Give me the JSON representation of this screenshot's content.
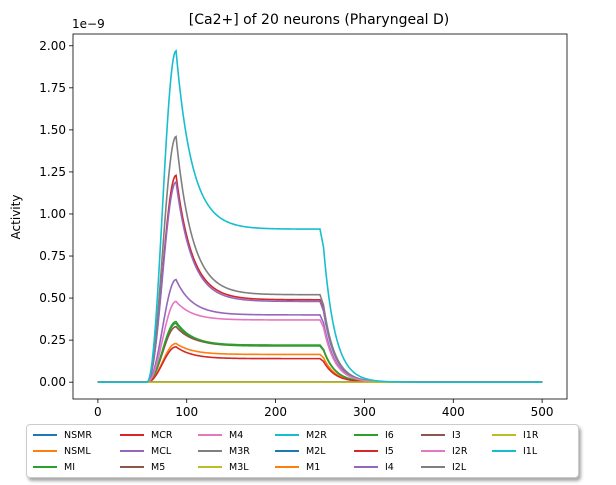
{
  "chart_data": {
    "type": "line",
    "title": "[Ca2+] of 20 neurons (Pharyngeal D)",
    "xlabel": "",
    "ylabel": "Activity",
    "offset_text": "1e−9",
    "xlim": [
      -28,
      528
    ],
    "ylim": [
      -0.1,
      2.07
    ],
    "xticks": [
      0,
      100,
      200,
      300,
      400,
      500
    ],
    "yticks": [
      0.0,
      0.25,
      0.5,
      0.75,
      1.0,
      1.25,
      1.5,
      1.75,
      2.0
    ],
    "ytick_labels": [
      "0.00",
      "0.25",
      "0.50",
      "0.75",
      "1.00",
      "1.25",
      "1.50",
      "1.75",
      "2.00"
    ],
    "grid": false,
    "legend_placement": "below-plot",
    "series": [
      {
        "name": "NSMR",
        "color": "#1f77b4",
        "peak": 0.0,
        "plateau": 0.0
      },
      {
        "name": "NSML",
        "color": "#ff7f0e",
        "peak": 0.0,
        "plateau": 0.0
      },
      {
        "name": "MI",
        "color": "#2ca02c",
        "peak": 0.35,
        "plateau": 0.215
      },
      {
        "name": "MCR",
        "color": "#d62728",
        "peak": 1.23,
        "plateau": 0.49
      },
      {
        "name": "MCL",
        "color": "#9467bd",
        "peak": 1.19,
        "plateau": 0.48
      },
      {
        "name": "M5",
        "color": "#8c564b",
        "peak": 0.33,
        "plateau": 0.22
      },
      {
        "name": "M4",
        "color": "#e377c2",
        "peak": 0.0,
        "plateau": 0.0
      },
      {
        "name": "M3R",
        "color": "#7f7f7f",
        "peak": 1.46,
        "plateau": 0.52
      },
      {
        "name": "M3L",
        "color": "#bcbd22",
        "peak": 0.0,
        "plateau": 0.0
      },
      {
        "name": "M2R",
        "color": "#17becf",
        "peak": 0.0,
        "plateau": 0.0
      },
      {
        "name": "M2L",
        "color": "#1f77b4",
        "peak": 0.0,
        "plateau": 0.0
      },
      {
        "name": "M1",
        "color": "#ff7f0e",
        "peak": 0.23,
        "plateau": 0.165
      },
      {
        "name": "I6",
        "color": "#2ca02c",
        "peak": 0.36,
        "plateau": 0.22
      },
      {
        "name": "I5",
        "color": "#d62728",
        "peak": 0.21,
        "plateau": 0.14
      },
      {
        "name": "I4",
        "color": "#9467bd",
        "peak": 0.61,
        "plateau": 0.4
      },
      {
        "name": "I3",
        "color": "#8c564b",
        "peak": 0.0,
        "plateau": 0.0
      },
      {
        "name": "I2R",
        "color": "#e377c2",
        "peak": 0.48,
        "plateau": 0.37
      },
      {
        "name": "I2L",
        "color": "#7f7f7f",
        "peak": 0.0,
        "plateau": 0.0
      },
      {
        "name": "I1R",
        "color": "#bcbd22",
        "peak": 0.0,
        "plateau": 0.0
      },
      {
        "name": "I1L",
        "color": "#17becf",
        "peak": 1.97,
        "plateau": 0.91
      }
    ]
  }
}
